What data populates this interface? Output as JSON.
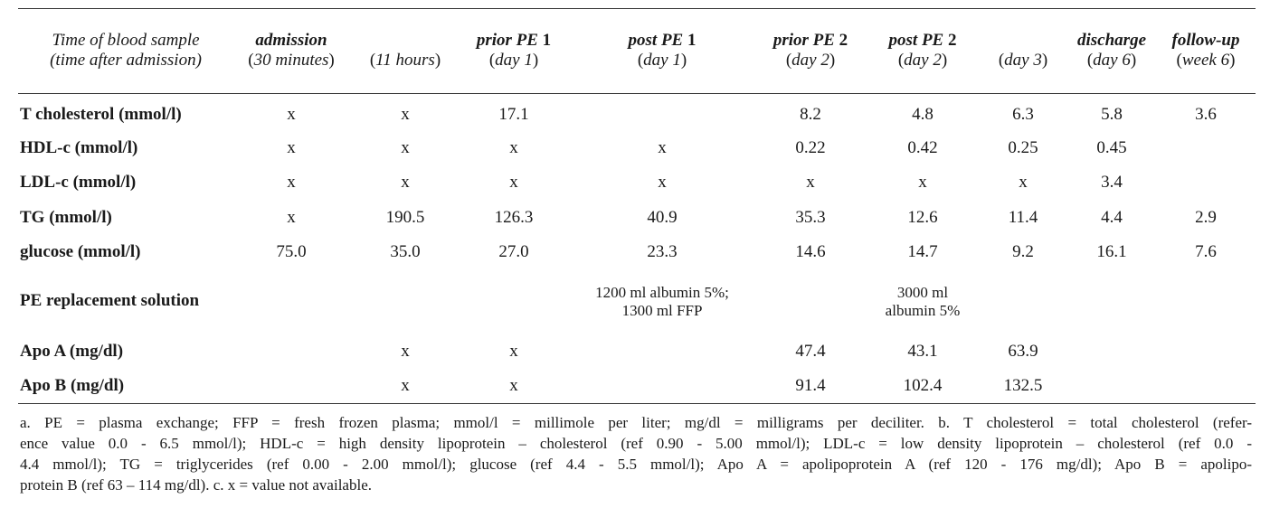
{
  "header": {
    "col0": {
      "line1": "Time of blood sample",
      "line2": "(time after admission)"
    },
    "cols": [
      {
        "line1_italic": "admission",
        "line1_plain": "",
        "line2": "(30 minutes)",
        "line2_label": "30 minutes"
      },
      {
        "line1_italic": "",
        "line1_plain": "",
        "line2": "(11 hours)",
        "line2_label": "11 hours"
      },
      {
        "line1_italic": "prior PE",
        "line1_plain": "1",
        "line2_label": "day 1"
      },
      {
        "line1_italic": "post PE",
        "line1_plain": "1",
        "line2_label": "day 1"
      },
      {
        "line1_italic": "prior PE",
        "line1_plain": "2",
        "line2_label": "day 2"
      },
      {
        "line1_italic": "post PE",
        "line1_plain": "2",
        "line2_label": "day 2"
      },
      {
        "line1_italic": "",
        "line1_plain": "",
        "line2_label": "day 3"
      },
      {
        "line1_italic": "discharge",
        "line1_plain": "",
        "line2_label": "day 6"
      },
      {
        "line1_italic": "follow-up",
        "line1_plain": "",
        "line2_label": "week 6"
      }
    ]
  },
  "rows": [
    {
      "label": "T cholesterol (mmol/l)",
      "values": [
        "x",
        "x",
        "17.1",
        "",
        "8.2",
        "4.8",
        "6.3",
        "5.8",
        "3.6"
      ]
    },
    {
      "label": "HDL-c (mmol/l)",
      "values": [
        "x",
        "x",
        "x",
        "x",
        "0.22",
        "0.42",
        "0.25",
        "0.45",
        ""
      ]
    },
    {
      "label": "LDL-c (mmol/l)",
      "values": [
        "x",
        "x",
        "x",
        "x",
        "x",
        "x",
        "x",
        "3.4",
        ""
      ]
    },
    {
      "label": "TG (mmol/l)",
      "values": [
        "x",
        "190.5",
        "126.3",
        "40.9",
        "35.3",
        "12.6",
        "11.4",
        "4.4",
        "2.9"
      ]
    },
    {
      "label": "glucose (mmol/l)",
      "values": [
        "75.0",
        "35.0",
        "27.0",
        "23.3",
        "14.6",
        "14.7",
        "9.2",
        "16.1",
        "7.6"
      ]
    }
  ],
  "pe_row": {
    "label": "PE replacement solution",
    "note1_line1": "1200 ml albumin 5%;",
    "note1_line2": "1300 ml FFP",
    "note2_line1": "3000 ml",
    "note2_line2": "albumin 5%"
  },
  "apo_rows": [
    {
      "label": "Apo A (mg/dl)",
      "values": [
        "",
        "x",
        "x",
        "",
        "47.4",
        "43.1",
        "63.9",
        "",
        ""
      ]
    },
    {
      "label": "Apo B (mg/dl)",
      "values": [
        "",
        "x",
        "x",
        "",
        "91.4",
        "102.4",
        "132.5",
        "",
        ""
      ]
    }
  ],
  "footnote": {
    "line1": "a. PE = plasma exchange; FFP = fresh frozen plasma; mmol/l = millimole per liter; mg/dl = milligrams per deciliter. b. T cholesterol = total cholesterol (refer-",
    "line2": "ence value 0.0 - 6.5 mmol/l); HDL-c = high density lipoprotein – cholesterol (ref 0.90 - 5.00 mmol/l); LDL-c = low density lipoprotein – cholesterol (ref 0.0 -",
    "line3": "4.4 mmol/l); TG = triglycerides (ref 0.00 - 2.00 mmol/l); glucose (ref 4.4 - 5.5 mmol/l); Apo A = apolipoprotein A (ref 120 - 176 mg/dl); Apo B = apolipo-",
    "line4": "protein B (ref 63 – 114 mg/dl). c. x = value not available."
  }
}
